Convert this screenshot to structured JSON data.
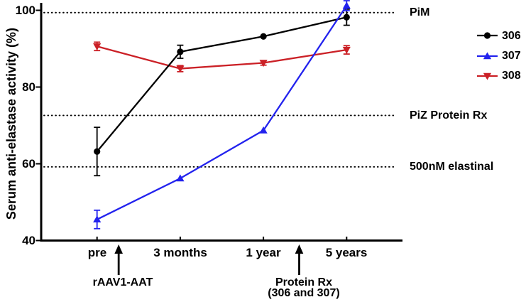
{
  "chart_data": {
    "type": "line",
    "title": "",
    "ylabel": "Serum anti-elastase activity (%)",
    "xlabel": "",
    "categories": [
      "pre",
      "3 months",
      "1 year",
      "5 years"
    ],
    "ylim": [
      40,
      100
    ],
    "yticks": [
      "40",
      "60",
      "80",
      "100"
    ],
    "grid": false,
    "legend_position": "right",
    "series": [
      {
        "name": "306",
        "color": "#000000",
        "marker": "circle",
        "values": [
          63.2,
          89.2,
          93.2,
          98.2
        ],
        "errors": [
          6.3,
          1.7,
          0,
          2.1
        ]
      },
      {
        "name": "307",
        "color": "#2222EE",
        "marker": "triangle-up",
        "values": [
          45.5,
          56.2,
          68.7,
          101.2
        ],
        "errors": [
          2.4,
          0,
          0,
          1.3
        ]
      },
      {
        "name": "308",
        "color": "#CB2026",
        "marker": "triangle-down",
        "values": [
          90.6,
          84.8,
          86.3,
          89.7
        ],
        "errors": [
          1.1,
          0.8,
          0.6,
          1.1
        ]
      }
    ],
    "draw_order": [
      2,
      0,
      1
    ],
    "reference_lines": [
      {
        "value": 99.4,
        "label": "PiM"
      },
      {
        "value": 72.6,
        "label": "PiZ Protein Rx"
      },
      {
        "value": 59.2,
        "label": "500nM elastinal"
      }
    ],
    "annotations": [
      {
        "x_index": 0.26,
        "lines": [
          "rAAV1-AAT"
        ]
      },
      {
        "x_index": 2.43,
        "lines": [
          "Protein Rx",
          "(306 and 307)"
        ]
      }
    ]
  }
}
